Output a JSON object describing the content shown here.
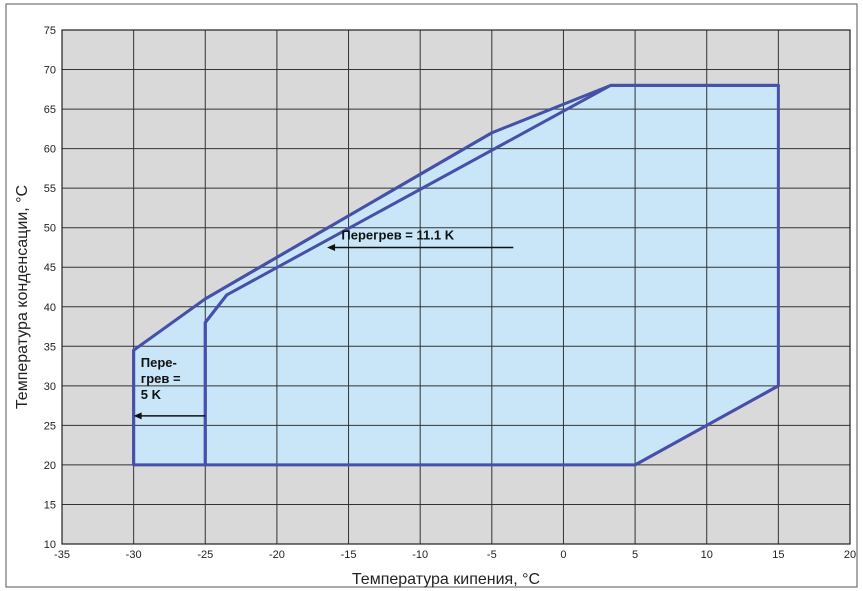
{
  "chart_data": {
    "type": "line",
    "xlabel": "Температура кипения, °C",
    "ylabel": "Температура конденсации, °C",
    "xlim": [
      -35,
      20
    ],
    "ylim": [
      10,
      75
    ],
    "x_ticks": [
      "-35",
      "-30",
      "-25",
      "-20",
      "-15",
      "-10",
      "-5",
      "0",
      "5",
      "10",
      "15",
      "20"
    ],
    "y_ticks": [
      "10",
      "15",
      "20",
      "25",
      "30",
      "35",
      "40",
      "45",
      "50",
      "55",
      "60",
      "65",
      "70",
      "75"
    ],
    "grid": true,
    "series": [
      {
        "x": [
          -30,
          -30,
          5,
          15,
          15,
          3.3,
          -5,
          -25,
          -30
        ],
        "y": [
          20,
          34.5,
          20,
          30,
          68,
          68,
          62,
          41,
          34.5
        ]
      },
      {
        "x": [
          -25,
          -25,
          -25,
          -23.5,
          3.3
        ],
        "y": [
          20,
          38,
          38,
          41.5,
          68
        ]
      }
    ],
    "envelope": {
      "x": [
        -30,
        5,
        15,
        15,
        3.3,
        -5,
        -25,
        -30
      ],
      "y": [
        20,
        20,
        30,
        68,
        68,
        62,
        41,
        34.5
      ]
    },
    "annotations": [
      {
        "lines": [
          "Перегрев  = 11.1 K"
        ],
        "text_x": -15.5,
        "text_y": 48.5,
        "arrow": {
          "x1": -3.5,
          "y1": 47.5,
          "x2": -16.5,
          "y2": 47.5
        }
      },
      {
        "lines": [
          "Пере-",
          "грев =",
          "5 K"
        ],
        "text_x": -29.5,
        "text_y": 32.4,
        "arrow": {
          "x1": -25,
          "y1": 26.2,
          "x2": -30,
          "y2": 26.2
        }
      }
    ],
    "colors": {
      "plot_bg": "#d9d9d9",
      "fill": "#c8e6f7",
      "line": "#4650a8",
      "grid": "#333333"
    }
  }
}
